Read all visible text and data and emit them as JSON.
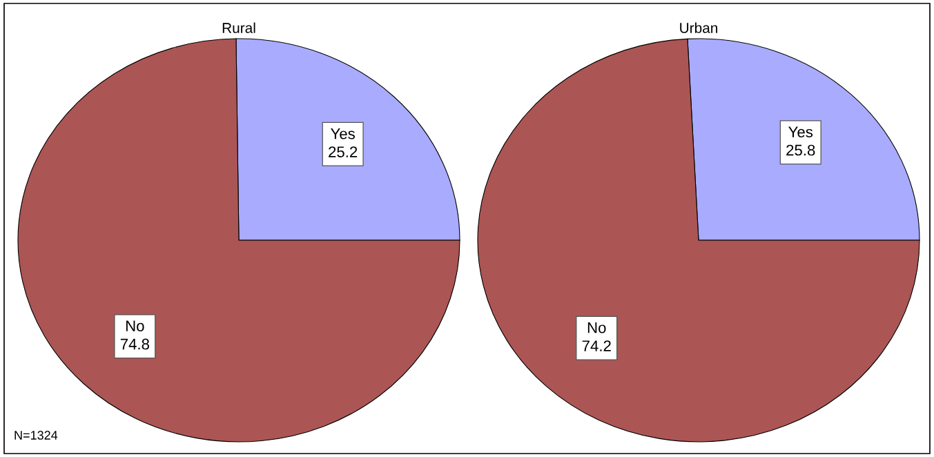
{
  "chart_data": [
    {
      "type": "pie",
      "title": "Rural",
      "categories": [
        "Yes",
        "No"
      ],
      "values": [
        25.2,
        74.8
      ],
      "colors": [
        "#a9abfe",
        "#ab5654"
      ],
      "data_labels": true,
      "annotations": [
        "N=1324"
      ]
    },
    {
      "type": "pie",
      "title": "Urban",
      "categories": [
        "Yes",
        "No"
      ],
      "values": [
        25.8,
        74.2
      ],
      "colors": [
        "#a9abfe",
        "#ab5654"
      ],
      "data_labels": true
    }
  ]
}
